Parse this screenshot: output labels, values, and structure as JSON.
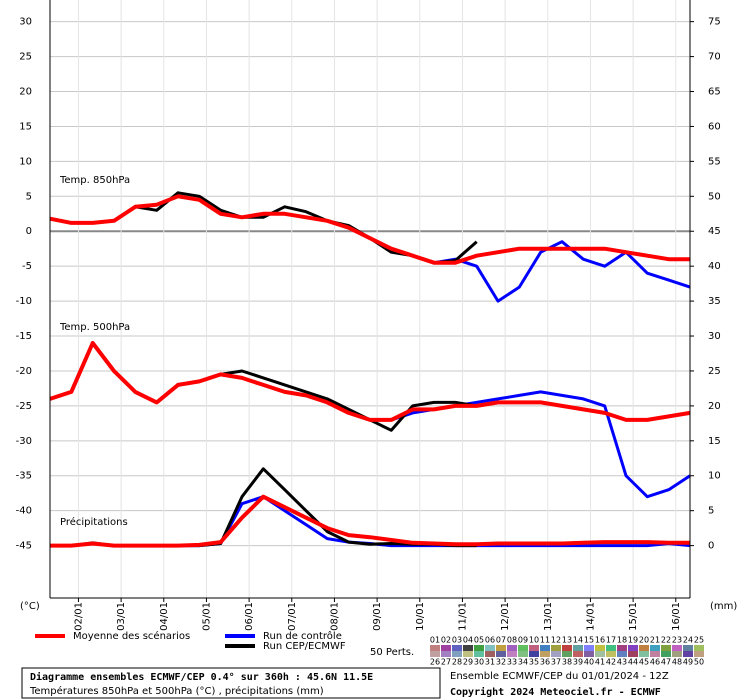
{
  "chart_data": {
    "type": "line",
    "label_850": "Temp. 850hPa",
    "label_500": "Temp. 500hPa",
    "label_precip": "Précipitations",
    "y_unit": "(°C)",
    "y2_unit": "(mm)",
    "x": [
      0,
      12,
      24,
      36,
      48,
      60,
      72,
      84,
      96,
      108,
      120,
      132,
      144,
      156,
      168,
      180,
      192,
      204,
      216,
      228,
      240,
      252,
      264,
      276,
      288,
      300,
      312,
      324,
      336,
      348,
      360
    ],
    "xlim": [
      0,
      360
    ],
    "xticks": [
      {
        "value": 16,
        "label": "02/01"
      },
      {
        "value": 40,
        "label": "03/01"
      },
      {
        "value": 64,
        "label": "04/01"
      },
      {
        "value": 88,
        "label": "05/01"
      },
      {
        "value": 112,
        "label": "06/01"
      },
      {
        "value": 136,
        "label": "07/01"
      },
      {
        "value": 160,
        "label": "08/01"
      },
      {
        "value": 184,
        "label": "09/01"
      },
      {
        "value": 208,
        "label": "10/01"
      },
      {
        "value": 232,
        "label": "11/01"
      },
      {
        "value": 256,
        "label": "12/01"
      },
      {
        "value": 280,
        "label": "13/01"
      },
      {
        "value": 304,
        "label": "14/01"
      },
      {
        "value": 328,
        "label": "15/01"
      },
      {
        "value": 352,
        "label": "16/01"
      }
    ],
    "ylim": [
      -52.5,
      33.1
    ],
    "yticks": [
      30,
      25,
      20,
      15,
      10,
      5,
      0,
      -5,
      -10,
      -15,
      -20,
      -25,
      -30,
      -35,
      -40,
      -45
    ],
    "y2lim": [
      -7.5,
      78.1
    ],
    "y2ticks": [
      75,
      70,
      65,
      60,
      55,
      50,
      45,
      40,
      35,
      30,
      25,
      20,
      15,
      10,
      5,
      0
    ],
    "grid": true,
    "series": [
      {
        "name": "Moyenne des scénarios",
        "color": "#ff0000",
        "t850": [
          1.8,
          1.2,
          1.2,
          1.5,
          3.5,
          3.8,
          5,
          4.5,
          2.5,
          2,
          2.5,
          2.5,
          2,
          1.5,
          0.5,
          -1,
          -2.5,
          -3.5,
          -4.5,
          -4.5,
          -3.5,
          -3,
          -2.5,
          -2.5,
          -2.5,
          -2.5,
          -2.5,
          -3,
          -3.5,
          -4,
          -4
        ],
        "t500": [
          -24,
          -23,
          -16,
          -20,
          -23,
          -24.5,
          -22,
          -21.5,
          -20.5,
          -21,
          -22,
          -23,
          -23.5,
          -24.5,
          -26,
          -27,
          -27,
          -25.5,
          -25.5,
          -25,
          -25,
          -24.5,
          -24.5,
          -24.5,
          -25,
          -25.5,
          -26,
          -27,
          -27,
          -26.5,
          -26
        ],
        "precip": [
          0,
          0,
          0.3,
          0,
          0,
          0,
          0,
          0.1,
          0.5,
          4,
          7,
          5.5,
          4,
          2.5,
          1.5,
          1.2,
          0.8,
          0.4,
          0.3,
          0.2,
          0.2,
          0.3,
          0.3,
          0.3,
          0.3,
          0.4,
          0.5,
          0.5,
          0.5,
          0.4,
          0.4
        ]
      },
      {
        "name": "Run de contrôle",
        "color": "#0000ff",
        "t850": [
          1.8,
          1.2,
          1.2,
          1.5,
          3.5,
          3.8,
          5,
          4.5,
          2.5,
          2,
          2.5,
          2.5,
          2,
          1.5,
          0.5,
          -1,
          -2.5,
          -3.5,
          -4.5,
          -4,
          -5,
          -10,
          -8,
          -3,
          -1.5,
          -4,
          -5,
          -3,
          -6,
          -7,
          -8
        ],
        "t500": [
          -24,
          -23,
          -16,
          -20,
          -23,
          -24.5,
          -22,
          -21.5,
          -20.5,
          -21,
          -22,
          -23,
          -23.5,
          -24.5,
          -26,
          -27,
          -27,
          -26,
          -25.5,
          -25,
          -24.5,
          -24,
          -23.5,
          -23,
          -23.5,
          -24,
          -25,
          -35,
          -38,
          -37,
          -35
        ],
        "precip": [
          0,
          0,
          0.3,
          0,
          0,
          0,
          0,
          0,
          0.3,
          6,
          7,
          5,
          3,
          1,
          0.5,
          0.3,
          0,
          0,
          0,
          0,
          0,
          0,
          0,
          0,
          0,
          0,
          0,
          0,
          0,
          0.3,
          0
        ]
      },
      {
        "name": "Run CEP/ECMWF",
        "color": "#000000",
        "t850": [
          1.8,
          1.2,
          1.2,
          1.5,
          3.5,
          3,
          5.5,
          5,
          3,
          2,
          2,
          3.5,
          2.8,
          1.5,
          0.8,
          -1,
          -3,
          -3.5,
          -4.5,
          -4.2,
          -1.5,
          null,
          null,
          null,
          null,
          null,
          null,
          null,
          null,
          null,
          null
        ],
        "t500": [
          -24,
          -23,
          -16,
          -20,
          -23,
          -24.5,
          -22,
          -21.5,
          -20.5,
          -20,
          -21,
          -22,
          -23,
          -24,
          -25.5,
          -27,
          -28.5,
          -25,
          -24.5,
          -24.5,
          -25,
          null,
          null,
          null,
          null,
          null,
          null,
          null,
          null,
          null,
          null
        ],
        "precip": [
          0,
          0,
          0.4,
          0,
          0,
          0,
          0,
          0,
          0.3,
          7,
          11,
          8,
          5,
          2,
          0.5,
          0.2,
          0.3,
          0.2,
          0.2,
          0,
          0,
          null,
          null,
          null,
          null,
          null,
          null,
          null,
          null,
          null,
          null
        ]
      }
    ],
    "perts_label": "50 Perts.",
    "perts": [
      "01",
      "02",
      "03",
      "04",
      "05",
      "06",
      "07",
      "08",
      "09",
      "10",
      "11",
      "12",
      "13",
      "14",
      "15",
      "16",
      "17",
      "18",
      "19",
      "20",
      "21",
      "22",
      "23",
      "24",
      "25",
      "26",
      "27",
      "28",
      "29",
      "30",
      "31",
      "32",
      "33",
      "34",
      "35",
      "36",
      "37",
      "38",
      "39",
      "40",
      "41",
      "42",
      "43",
      "44",
      "45",
      "46",
      "47",
      "48",
      "49",
      "50"
    ],
    "pert_colors": [
      "#c08080",
      "#a040a0",
      "#6060c0",
      "#404040",
      "#40a040",
      "#80c0c0",
      "#c0a040",
      "#a060c0",
      "#60c060",
      "#c06080",
      "#4080c0",
      "#a0a040",
      "#c04040",
      "#60a0a0",
      "#8080ff",
      "#c0c040",
      "#40c080",
      "#a04080",
      "#8040c0",
      "#c08040",
      "#40a0c0",
      "#80a040",
      "#c060c0",
      "#6080a0",
      "#a0c060",
      "#c0a0a0",
      "#a080c0",
      "#80a0c0",
      "#c0c080",
      "#60c0a0",
      "#a06060",
      "#6060a0",
      "#c080c0",
      "#80c080",
      "#4040a0",
      "#c0a060",
      "#a0a0c0",
      "#60a060",
      "#c06060",
      "#8060a0",
      "#a0c0a0",
      "#c0c060",
      "#6080c0",
      "#a04060",
      "#80c0a0",
      "#c080a0",
      "#40a060",
      "#a0a080",
      "#6040a0",
      "#c0a080"
    ],
    "info_title": "Diagramme ensembles ECMWF/CEP 0.4° sur 360h : 45.6N 11.5E",
    "info_sub": "Températures 850hPa et 500hPa (°C) , précipitations (mm)",
    "info_run": "Ensemble ECMWF/CEP du 01/01/2024 - 12Z",
    "copyright": "Copyright 2024 Meteociel.fr - ECMWF"
  }
}
